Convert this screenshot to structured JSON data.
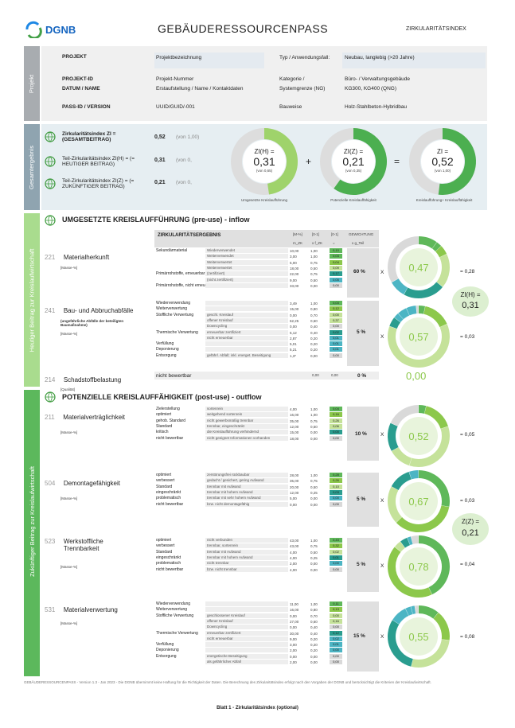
{
  "header": {
    "logo_text": "DGNB",
    "title": "GEBÄUDERESSOURCENPASS",
    "subtitle": "ZIRKULARITÄTSINDEX"
  },
  "project": {
    "side_label": "Projekt",
    "rows": [
      {
        "label": "PROJEKT",
        "value": "Projektbezeichnung",
        "label2": "Typ / Anwendungsfall:",
        "value2": "Neubau, langlebig (>20 Jahre)"
      },
      {
        "label": "PROJEKT-ID",
        "value": "Projekt-Nummer",
        "label2": "Kategorie /",
        "value2": "Büro- / Verwaltungsgebäude"
      },
      {
        "label": "DATUM / NAME",
        "value": "Erstaufstellung / Name / Kontaktdaten",
        "label2": "Systemgrenze (NG)",
        "value2": "KG300, KG400 (QNG)"
      },
      {
        "label": "PASS-ID / VERSION",
        "value": "UUID/GUID/-001",
        "label2": "Bauweise",
        "value2": "Holz-Stahlbeton-Hybridbau"
      }
    ]
  },
  "gesamt": {
    "side_label": "Gesamtergebnis",
    "rows": [
      {
        "label": "Zirkularitätsindex ZI = (GESAMTBEITRAG)",
        "value": "0,52",
        "of": "(von 1,00)"
      },
      {
        "label": "Teil-Zirkularitätsindex ZI(H) = (= HEUTIGER BEITRAG)",
        "value": "0,31",
        "of": "(von 0,"
      },
      {
        "label": "Teil-Zirkularitätsindex ZI(Z) = (= ZUKÜNFTIGER BEITRAG)",
        "value": "0,21",
        "of": "(von 0,"
      }
    ],
    "donuts": [
      {
        "name": "ZI(H) =",
        "value": "0,31",
        "of": "(von 0,65)",
        "caption": "Umgesetzte Kreislaufführung",
        "fraction": 0.477,
        "color": "#9fd36b"
      },
      {
        "name": "ZI(Z) =",
        "value": "0,21",
        "of": "(von 0,35)",
        "caption": "Potenzielle Kreislauffähigkeit",
        "fraction": 0.6,
        "color": "#4caf50"
      },
      {
        "name": "ZI =",
        "value": "0,52",
        "of": "(von 1,00)",
        "caption": "Kreislaufführung+ Kreislauffähigkeit",
        "fraction": 0.52,
        "color": "#4caf50"
      }
    ],
    "plus": "+",
    "equals": "="
  },
  "inflow": {
    "side_label": "Heutiger Beitrag zur Kreislaufwirtschaft",
    "title": "UMGESETZTE KREISLAUFFÜHRUNG (pre-use) - inflow",
    "table_head": {
      "title": "ZIRKULARITÄTSERGEBNIS",
      "c1": "[M-%]",
      "c2": "[0-1]",
      "c3": "[0-1]",
      "c4": "GEWICHTUNG",
      "s1": "m_ZK",
      "s2": "x f_ZK",
      "s3": "=",
      "s4": "x g_Teil"
    },
    "blocks": [
      {
        "num": "221",
        "name": "Materialherkunft",
        "unit": "[Masse-%]",
        "weight": "60 %",
        "center": "0,47",
        "result": "= 0,28"
      },
      {
        "num": "241",
        "name": "Bau- und Abbruchabfälle",
        "note": "(ungefährliche Abfälle der beteiligten Baumaßnahme)",
        "unit": "[Masse-%]",
        "weight": "5 %",
        "center": "0,57",
        "result": "= 0,03"
      },
      {
        "num": "214",
        "name": "Schadstoffbelastung",
        "unit": "[Qualität]",
        "weight": "0 %",
        "center": "0,00",
        "rowlabel": "nicht bewertbar",
        "n1": "0,00",
        "n2": "0,00"
      }
    ],
    "rows_221": [
      {
        "group": "Sekundärmaterial",
        "sub": "Wiederverwendet",
        "m": "10,00",
        "f": "1,00",
        "r": "0,10",
        "c": "#5fb85a"
      },
      {
        "group": "",
        "sub": "Weiterverwendet",
        "m": "3,00",
        "f": "1,00",
        "r": "0,03",
        "c": "#5fb85a"
      },
      {
        "group": "",
        "sub": "Weiterverwertet",
        "m": "5,00",
        "f": "0,75",
        "r": "0,04",
        "c": "#8cc84b"
      },
      {
        "group": "",
        "sub": "Weiterverwertet",
        "m": "18,00",
        "f": "0,50",
        "r": "0,09",
        "c": "#c5e29a"
      },
      {
        "group": "Primärrohstoffe, erneuerbar",
        "sub": "(zertifiziert)",
        "m": "22,00",
        "f": "0,75",
        "r": "0,17",
        "c": "#2a9d8f"
      },
      {
        "group": "",
        "sub": "(nicht zertifiziert)",
        "m": "9,00",
        "f": "0,50",
        "r": "0,05",
        "c": "#4cb5c4"
      },
      {
        "group": "Primärrohstoffe, nicht erneuerbar",
        "sub": "",
        "m": "33,00",
        "f": "0,00",
        "r": "0,00",
        "c": "#d9d9d9"
      }
    ],
    "rows_241": [
      {
        "group": "Wiederverwendung",
        "sub": "",
        "m": "3,49",
        "f": "1,00",
        "r": "0,03",
        "c": "#5fb85a"
      },
      {
        "group": "Weiterverwertung",
        "sub": "",
        "m": "15,00",
        "f": "0,80",
        "r": "0,12",
        "c": "#8cc84b"
      },
      {
        "group": "Stoffliche Verwertung",
        "sub": "geschl. Kreislauf",
        "m": "0,00",
        "f": "0,70",
        "r": "0,00",
        "c": "#c5e29a"
      },
      {
        "group": "",
        "sub": "offener Kreislauf",
        "m": "62,25",
        "f": "0,60",
        "r": "0,37",
        "c": "#c5e29a"
      },
      {
        "group": "",
        "sub": "Downcycling",
        "m": "0,00",
        "f": "0,40",
        "r": "0,00",
        "c": "#d9d9d9"
      },
      {
        "group": "Thermische Verwertung",
        "sub": "erneuerbar zertifiziert",
        "m": "5,12",
        "f": "0,40",
        "r": "0,02",
        "c": "#2a9d8f"
      },
      {
        "group": "",
        "sub": "nicht erneuerbar",
        "m": "2,87",
        "f": "0,20",
        "r": "0,01",
        "c": "#4cb5c4"
      },
      {
        "group": "Verfüllung",
        "sub": "",
        "m": "5,01",
        "f": "0,20",
        "r": "0,01",
        "c": "#4cb5c4"
      },
      {
        "group": "Deponierung",
        "sub": "",
        "m": "5,21",
        "f": "0,20",
        "r": "0,01",
        "c": "#4cb5c4"
      },
      {
        "group": "Entsorgung",
        "sub": "gefährl. Abfall; inkl. energet. Beseitigung",
        "m": "1,3*",
        "f": "0,00",
        "r": "0,00",
        "c": "#d9d9d9"
      }
    ]
  },
  "outflow": {
    "side_label": "Zukünftiger Beitrag zur Kreislaufwirtschaft",
    "title": "POTENZIELLE KREISLAUFFÄHIGKEIT (post-use) - outflow",
    "blocks": [
      {
        "num": "211",
        "name": "Materialverträglichkeit",
        "unit": "[Masse-%]",
        "weight": "10 %",
        "center": "0,52",
        "result": "= 0,05"
      },
      {
        "num": "504",
        "name": "Demontagefähigkeit",
        "unit": "[Masse-%]",
        "weight": "5 %",
        "center": "0,67",
        "result": "= 0,03"
      },
      {
        "num": "523",
        "name": "Werkstoffliche Trennbarkeit",
        "unit": "[Masse-%]",
        "weight": "5 %",
        "center": "0,78",
        "result": "= 0,04"
      },
      {
        "num": "531",
        "name": "Materialverwertung",
        "unit": "[Masse-%]",
        "weight": "15 %",
        "center": "0,55",
        "result": "= 0,08"
      }
    ],
    "rows_211": [
      {
        "group": "Zielerstellung",
        "sub": "sortenrein",
        "m": "4,00",
        "f": "1,00",
        "r": "0,04",
        "c": "#5fb85a"
      },
      {
        "group": "optimiert",
        "sub": "weitgehend sortenrein",
        "m": "16,00",
        "f": "1,00",
        "r": "0,16",
        "c": "#8cc84b"
      },
      {
        "group": "gehob. Standard",
        "sub": "nicht gewerbsmäßig trennbar",
        "m": "35,00",
        "f": "0,75",
        "r": "0,26",
        "c": "#c5e29a"
      },
      {
        "group": "Standard",
        "sub": "trennbar, eingeschränkt",
        "m": "12,00",
        "f": "0,50",
        "r": "0,06",
        "c": "#c5e29a"
      },
      {
        "group": "kritisch",
        "sub": "die Kreislaufführung verhindernd",
        "m": "15,00",
        "f": "0,00",
        "r": "0,00",
        "c": "#2a9d8f"
      },
      {
        "group": "nicht bewertbar",
        "sub": "nicht geeignet Informationen vorhanden",
        "m": "18,00",
        "f": "0,00",
        "r": "0,00",
        "c": "#d9d9d9"
      }
    ],
    "rows_504": [
      {
        "group": "optimiert",
        "sub": "zerstörungsfrei rückbaubar",
        "m": "28,00",
        "f": "1,00",
        "r": "0,28",
        "c": "#5fb85a"
      },
      {
        "group": "verbessert",
        "sub": "gedacht / gesichert, gering Aufwand",
        "m": "35,00",
        "f": "0,75",
        "r": "0,26",
        "c": "#8cc84b"
      },
      {
        "group": "Standard",
        "sub": "trennbar mit Aufwand",
        "m": "20,00",
        "f": "0,50",
        "r": "0,10",
        "c": "#c5e29a"
      },
      {
        "group": "eingeschränkt",
        "sub": "trennbar mit hohem Aufwand",
        "m": "12,00",
        "f": "0,25",
        "r": "0,03",
        "c": "#2a9d8f"
      },
      {
        "group": "problematisch",
        "sub": "trennbar mit sehr hohem Aufwand",
        "m": "5,00",
        "f": "0,00",
        "r": "0,00",
        "c": "#4cb5c4"
      },
      {
        "group": "nicht bewertbar",
        "sub": "bzw. nicht demontagefähig",
        "m": "0,00",
        "f": "0,00",
        "r": "0,00",
        "c": "#d9d9d9"
      }
    ],
    "rows_523": [
      {
        "group": "optimiert",
        "sub": "nicht verbunden",
        "m": "43,00",
        "f": "1,00",
        "r": "0,43",
        "c": "#5fb85a"
      },
      {
        "group": "verbessert",
        "sub": "trennbar, sortenrein",
        "m": "43,00",
        "f": "0,75",
        "r": "0,32",
        "c": "#8cc84b"
      },
      {
        "group": "Standard",
        "sub": "trennbar mit Aufwand",
        "m": "4,00",
        "f": "0,50",
        "r": "0,02",
        "c": "#c5e29a"
      },
      {
        "group": "eingeschränkt",
        "sub": "trennbar mit hohem Aufwand",
        "m": "4,00",
        "f": "0,25",
        "r": "0,01",
        "c": "#2a9d8f"
      },
      {
        "group": "problematisch",
        "sub": "nicht trennbar",
        "m": "2,00",
        "f": "0,00",
        "r": "0,00",
        "c": "#4cb5c4"
      },
      {
        "group": "nicht bewertbar",
        "sub": "bzw. nicht trennbar",
        "m": "4,00",
        "f": "0,00",
        "r": "0,00",
        "c": "#d9d9d9"
      }
    ],
    "rows_531": [
      {
        "group": "Wiederverwendung",
        "sub": "",
        "m": "11,00",
        "f": "1,00",
        "r": "0,11",
        "c": "#5fb85a"
      },
      {
        "group": "Weiterverwertung",
        "sub": "",
        "m": "16,00",
        "f": "0,80",
        "r": "0,13",
        "c": "#8cc84b"
      },
      {
        "group": "Stoffliche Verwertung",
        "sub": "geschlossener Kreislauf",
        "m": "0,00",
        "f": "0,70",
        "r": "0,00",
        "c": "#c5e29a"
      },
      {
        "group": "",
        "sub": "offener Kreislauf",
        "m": "27,00",
        "f": "0,60",
        "r": "0,16",
        "c": "#c5e29a"
      },
      {
        "group": "",
        "sub": "Downcycling",
        "m": "0,00",
        "f": "0,40",
        "r": "0,00",
        "c": "#d9d9d9"
      },
      {
        "group": "Thermische Verwertung",
        "sub": "erneuerbar zertifiziert",
        "m": "30,00",
        "f": "0,40",
        "r": "0,12",
        "c": "#2a9d8f"
      },
      {
        "group": "",
        "sub": "nicht erneuerbar",
        "m": "9,00",
        "f": "0,20",
        "r": "0,02",
        "c": "#4cb5c4"
      },
      {
        "group": "Verfüllung",
        "sub": "",
        "m": "3,00",
        "f": "0,20",
        "r": "0,01",
        "c": "#4cb5c4"
      },
      {
        "group": "Deponierung",
        "sub": "",
        "m": "2,00",
        "f": "0,20",
        "r": "0,00",
        "c": "#4cb5c4"
      },
      {
        "group": "Entsorgung",
        "sub": "energetische Beseitigung",
        "m": "0,00",
        "f": "0,00",
        "r": "0,00",
        "c": "#d9d9d9"
      },
      {
        "group": "",
        "sub": "als gefährlicher Abfall",
        "m": "2,00",
        "f": "0,00",
        "r": "0,00",
        "c": "#d9d9d9"
      }
    ]
  },
  "zih_box": {
    "label": "ZI(H) =",
    "value": "0,31"
  },
  "ziz_box": {
    "label": "Z(Z) =",
    "value": "0,21"
  },
  "times": "X",
  "footer": {
    "note": "GEBÄUDERESSOURCENPASS - Version 1.3 - Jan 2023 - Die DGNB übernimmt keine Haftung für die Richtigkeit der Daten. Die Berechnung des Zirkularitätsindex erfolgt nach den Vorgaben der DGNB und berücksichtigt die Kriterien der Kreislaufwirtschaft.",
    "page": "Blatt 1 - Zirkularitätsindex (optional)"
  },
  "colors": {
    "green_dark": "#3d9a3d",
    "green_mid": "#5fb85a",
    "green_light": "#9fd36b",
    "teal": "#2a9d8f",
    "side_grey": "#a0a4a8",
    "side_green": "#7cc36a"
  }
}
